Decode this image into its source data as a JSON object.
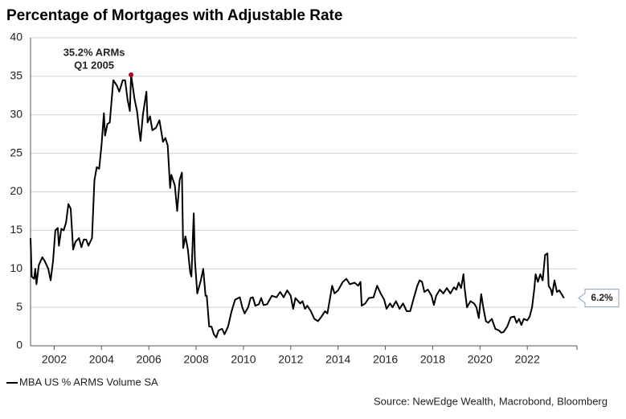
{
  "chart_data": {
    "type": "line",
    "title": "Percentage of Mortgages with Adjustable Rate",
    "source": "Source: NewEdge Wealth, Macrobond, Bloomberg",
    "xlim": [
      2001,
      2024.1
    ],
    "xticks": [
      2002,
      2004,
      2006,
      2008,
      2010,
      2012,
      2014,
      2016,
      2018,
      2020,
      2022
    ],
    "ylim": [
      0,
      40
    ],
    "yticks": [
      0,
      5,
      10,
      15,
      20,
      25,
      30,
      35,
      40
    ],
    "grid": true,
    "annotations": [
      {
        "lines": [
          "35.2% ARMs",
          "Q1 2005"
        ],
        "x": 2005.25,
        "y": 35.2,
        "color": "#b00020"
      },
      {
        "text": "6.2%",
        "x": 2023.55,
        "y": 6.2
      }
    ],
    "series": [
      {
        "name": "MBA US % ARMS Volume SA",
        "color": "#000000",
        "x": [
          2001.0,
          2001.05,
          2001.15,
          2001.2,
          2001.25,
          2001.35,
          2001.5,
          2001.6,
          2001.75,
          2001.85,
          2001.95,
          2002.05,
          2002.15,
          2002.2,
          2002.3,
          2002.4,
          2002.5,
          2002.6,
          2002.7,
          2002.8,
          2002.9,
          2003.05,
          2003.15,
          2003.25,
          2003.35,
          2003.45,
          2003.6,
          2003.7,
          2003.8,
          2003.9,
          2004.0,
          2004.1,
          2004.15,
          2004.25,
          2004.35,
          2004.5,
          2004.65,
          2004.75,
          2004.9,
          2005.0,
          2005.1,
          2005.2,
          2005.25,
          2005.4,
          2005.5,
          2005.6,
          2005.65,
          2005.75,
          2005.9,
          2005.95,
          2006.05,
          2006.15,
          2006.3,
          2006.45,
          2006.6,
          2006.7,
          2006.8,
          2006.9,
          2006.95,
          2007.1,
          2007.2,
          2007.3,
          2007.4,
          2007.45,
          2007.55,
          2007.65,
          2007.75,
          2007.8,
          2007.9,
          2007.95,
          2008.05,
          2008.2,
          2008.3,
          2008.4,
          2008.45,
          2008.55,
          2008.65,
          2008.75,
          2008.85,
          2008.95,
          2009.1,
          2009.2,
          2009.35,
          2009.5,
          2009.65,
          2009.85,
          2009.95,
          2010.05,
          2010.2,
          2010.3,
          2010.4,
          2010.5,
          2010.65,
          2010.75,
          2010.85,
          2011.0,
          2011.2,
          2011.4,
          2011.55,
          2011.7,
          2011.85,
          2012.0,
          2012.1,
          2012.2,
          2012.4,
          2012.5,
          2012.6,
          2012.7,
          2012.85,
          2013.0,
          2013.15,
          2013.3,
          2013.45,
          2013.55,
          2013.65,
          2013.75,
          2013.85,
          2014.0,
          2014.2,
          2014.35,
          2014.5,
          2014.7,
          2014.85,
          2014.95,
          2015.0,
          2015.15,
          2015.3,
          2015.5,
          2015.65,
          2015.8,
          2015.95,
          2016.05,
          2016.2,
          2016.3,
          2016.45,
          2016.6,
          2016.75,
          2016.9,
          2017.05,
          2017.2,
          2017.35,
          2017.45,
          2017.55,
          2017.65,
          2017.8,
          2017.95,
          2018.05,
          2018.15,
          2018.3,
          2018.45,
          2018.6,
          2018.75,
          2018.9,
          2019.0,
          2019.1,
          2019.2,
          2019.3,
          2019.35,
          2019.45,
          2019.6,
          2019.75,
          2019.85,
          2019.95,
          2020.05,
          2020.15,
          2020.25,
          2020.35,
          2020.5,
          2020.65,
          2020.8,
          2020.9,
          2021.0,
          2021.15,
          2021.3,
          2021.45,
          2021.55,
          2021.65,
          2021.75,
          2021.85,
          2022.0,
          2022.1,
          2022.2,
          2022.3,
          2022.35,
          2022.45,
          2022.55,
          2022.65,
          2022.75,
          2022.85,
          2022.9,
          2023.0,
          2023.05,
          2023.15,
          2023.25,
          2023.35,
          2023.45,
          2023.55
        ],
        "values": [
          14,
          9,
          8.7,
          10,
          8,
          10.5,
          11.5,
          11,
          10,
          8.5,
          11,
          15,
          15.3,
          13,
          15.2,
          15,
          16,
          18.4,
          17.8,
          12.5,
          13.5,
          14,
          12.8,
          13.8,
          13.8,
          13,
          14,
          21.5,
          23.2,
          23,
          26,
          30.2,
          27.3,
          28.8,
          29,
          34.5,
          33.8,
          33,
          34.5,
          34.5,
          32,
          30.5,
          35.2,
          32,
          30.5,
          27.8,
          26.6,
          30,
          33,
          29,
          29.8,
          28,
          28.3,
          29.3,
          26.5,
          27,
          26,
          20.5,
          22.2,
          20.8,
          17.5,
          21.5,
          22.5,
          12.7,
          14.2,
          12.5,
          9.5,
          9,
          17.2,
          11,
          6.8,
          8.5,
          10,
          6.5,
          6.5,
          2.5,
          2.5,
          1.5,
          1.1,
          2,
          2.2,
          1.5,
          2.5,
          4.5,
          6,
          6.3,
          5,
          4.2,
          5,
          6.2,
          6.3,
          5.2,
          5.4,
          6.2,
          5.3,
          5.4,
          6.5,
          6.3,
          7,
          6.3,
          7.2,
          6.5,
          4.8,
          6.2,
          5.5,
          5.8,
          4.8,
          5.2,
          4.5,
          3.5,
          3.2,
          3.8,
          4.5,
          4.2,
          6,
          7.8,
          6.8,
          7.2,
          8.3,
          8.7,
          8,
          8.2,
          7.8,
          8.3,
          5.2,
          5.5,
          6.2,
          6.3,
          7.8,
          6.8,
          6,
          4.8,
          5.5,
          5,
          5.8,
          4.8,
          5.5,
          4.5,
          4.5,
          6.2,
          7.8,
          8.5,
          8.3,
          7,
          7.3,
          6.5,
          5.3,
          6.5,
          7.3,
          6.8,
          7.5,
          6.8,
          7.6,
          7.3,
          8.2,
          7.5,
          9.3,
          7.5,
          5,
          5.8,
          5.5,
          5,
          3.6,
          6.7,
          4.8,
          3.2,
          3,
          3.5,
          2.2,
          2,
          1.7,
          1.8,
          2.5,
          3.7,
          3.8,
          3,
          3.5,
          2.7,
          3.5,
          3.3,
          3.8,
          5,
          7.5,
          9.3,
          8.3,
          9.3,
          8.5,
          11.8,
          12,
          7.8,
          7.3,
          6.6,
          8.5,
          7,
          7.2,
          6.7,
          6.2
        ]
      }
    ]
  }
}
